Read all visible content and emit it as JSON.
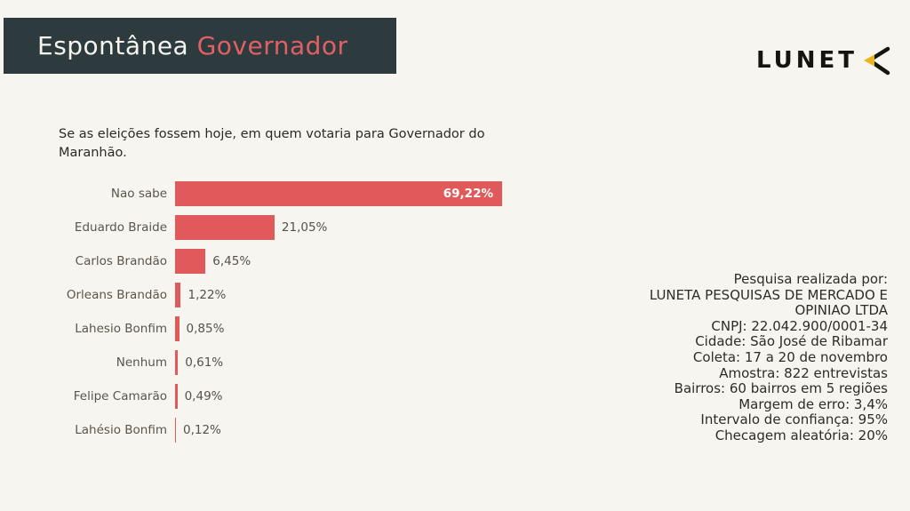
{
  "header": {
    "title_primary": "Espontânea",
    "title_secondary": " Governador",
    "bg_color": "#2d3a3e",
    "primary_color": "#f6f4ee",
    "secondary_color": "#e06065"
  },
  "logo": {
    "text": "LUNET",
    "mark": "chevron-left-with-yellow-triangle",
    "mark_triangle_color": "#e9b41f",
    "mark_stroke_color": "#15140e"
  },
  "question": "Se as eleições fossem hoje, em quem votaria para Governador do Maranhão.",
  "chart_data": {
    "type": "bar",
    "orientation": "horizontal",
    "title": "Se as eleições fossem hoje, em quem votaria para Governador do Maranhão.",
    "categories": [
      "Nao sabe",
      "Eduardo Braide",
      "Carlos Brandão",
      "Orleans Brandão",
      "Lahesio Bonfim",
      "Nenhum",
      "Felipe Camarão",
      "Lahésio Bonfim"
    ],
    "values": [
      69.22,
      21.05,
      6.45,
      1.22,
      0.85,
      0.61,
      0.49,
      0.12
    ],
    "value_labels": [
      "69,22%",
      "21,05%",
      "6,45%",
      "1,22%",
      "0,85%",
      "0,61%",
      "0,49%",
      "0,12%"
    ],
    "bar_color": "#e05a5c",
    "xlim": [
      0,
      72
    ],
    "grid": false,
    "legend": false,
    "value_label_position": "inside-right when value > 50, otherwise outside-right"
  },
  "info_panel": {
    "lines": [
      "Pesquisa realizada por:",
      "LUNETA PESQUISAS DE MERCADO E",
      "OPINIAO LTDA",
      "CNPJ: 22.042.900/0001-34",
      "Cidade: São José de Ribamar",
      "Coleta: 17 a 20 de novembro",
      "Amostra: 822 entrevistas",
      "Bairros: 60 bairros em 5 regiões",
      "Margem de erro: 3,4%",
      "Intervalo de confiança: 95%",
      "Checagem aleatória: 20%"
    ]
  }
}
